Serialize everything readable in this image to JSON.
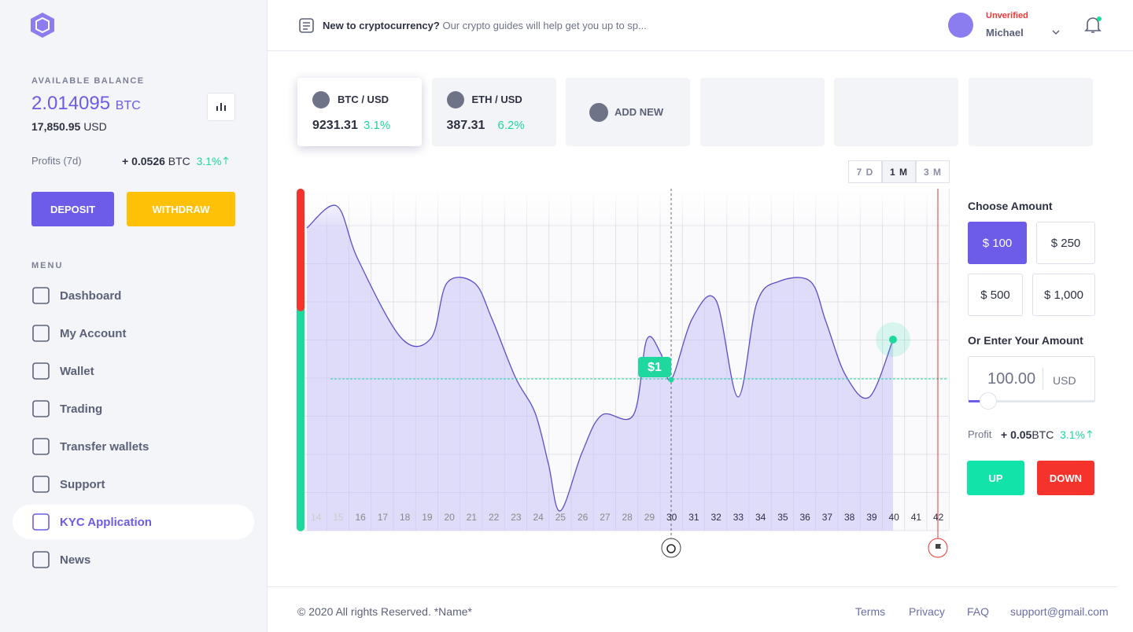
{
  "sidebar": {
    "balance_label": "AVAILABLE BALANCE",
    "balance": "2.014095",
    "balance_unit": "BTC",
    "usd": "17,850.95",
    "usd_unit": "USD",
    "profits_label": "Profits (7d)",
    "profits_value": "+ 0.0526",
    "profits_unit": "BTC",
    "profits_pct": "3.1%",
    "deposit": "DEPOSIT",
    "withdraw": "WITHDRAW",
    "menu_label": "MENU",
    "menu": [
      "Dashboard",
      "My Account",
      "Wallet",
      "Trading",
      "Transfer wallets",
      "Support",
      "KYC Application",
      "News"
    ]
  },
  "header": {
    "guide_bold": "New to cryptocurrency?",
    "guide_text": "Our crypto guides will help get you up to sp...",
    "status": "Unverified",
    "user": "Michael"
  },
  "pairs": [
    {
      "name": "BTC / USD",
      "price": "9231.31",
      "change": "3.1%"
    },
    {
      "name": "ETH / USD",
      "price": "387.31",
      "change": "6.2%"
    }
  ],
  "add_new": "ADD NEW",
  "ranges": [
    "7 D",
    "1 M",
    "3 M"
  ],
  "chart": {
    "x_labels": [
      14,
      15,
      16,
      17,
      18,
      19,
      20,
      21,
      22,
      23,
      24,
      25,
      26,
      27,
      28,
      29,
      30,
      31,
      32,
      33,
      34,
      35,
      36,
      37,
      38,
      39,
      40,
      41,
      42
    ],
    "price_tag": "$1"
  },
  "amount": {
    "title": "Choose Amount",
    "options": [
      "$ 100",
      "$ 250",
      "$ 500",
      "$ 1,000"
    ],
    "enter_label": "Or Enter Your Amount",
    "input": "100.00",
    "currency": "USD",
    "profit_label": "Profit",
    "profit_value": "+ 0.05",
    "profit_unit": "BTC",
    "profit_pct": "3.1%",
    "up": "UP",
    "down": "DOWN"
  },
  "footer": {
    "copyright": "© 2020 All rights Reserved. *Name*",
    "links": [
      "Terms",
      "Privacy",
      "FAQ",
      "support@gmail.com"
    ]
  }
}
